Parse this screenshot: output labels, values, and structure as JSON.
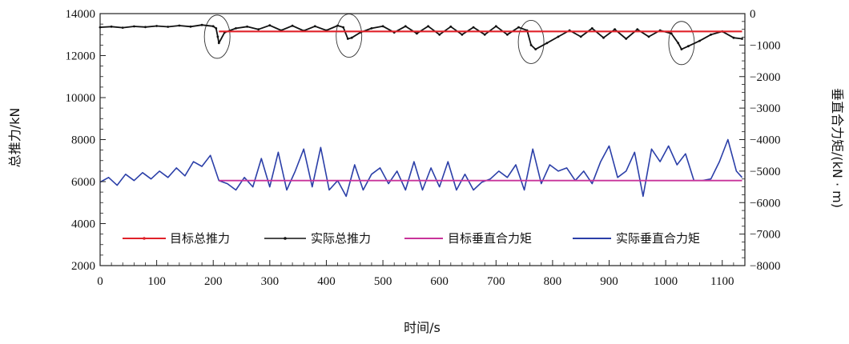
{
  "chart_data": {
    "type": "line",
    "xlabel": "时间/s",
    "ylabel_left": "总推力/kN",
    "ylabel_right": "垂直合力矩/(kN · m)",
    "xlim": [
      0,
      1140
    ],
    "ylim_left": [
      2000,
      14000
    ],
    "ylim_right": [
      -8000,
      0
    ],
    "x_ticks": [
      0,
      100,
      200,
      300,
      400,
      500,
      600,
      700,
      800,
      900,
      1000,
      1100
    ],
    "y_left_ticks": [
      2000,
      4000,
      6000,
      8000,
      10000,
      12000,
      14000
    ],
    "y_right_ticks": [
      0,
      -1000,
      -2000,
      -3000,
      -4000,
      -5000,
      -6000,
      -7000,
      -8000
    ],
    "grid": false,
    "legend_position": "bottom",
    "series": [
      {
        "name": "目标总推力",
        "axis": "left",
        "color": "#e0222a",
        "x": [
          210,
          1135
        ],
        "y": [
          13150,
          13150
        ]
      },
      {
        "name": "实际总推力",
        "axis": "left",
        "color": "#111111",
        "x": [
          0,
          20,
          40,
          60,
          80,
          100,
          120,
          140,
          160,
          180,
          200,
          205,
          208,
          210,
          220,
          240,
          260,
          280,
          300,
          320,
          340,
          360,
          380,
          400,
          420,
          430,
          438,
          445,
          460,
          480,
          500,
          520,
          540,
          560,
          580,
          600,
          620,
          640,
          660,
          680,
          700,
          720,
          740,
          755,
          762,
          770,
          790,
          810,
          830,
          850,
          870,
          890,
          910,
          930,
          950,
          970,
          990,
          1010,
          1022,
          1028,
          1040,
          1060,
          1080,
          1100,
          1120,
          1135
        ],
        "y": [
          13350,
          13380,
          13330,
          13390,
          13360,
          13410,
          13370,
          13430,
          13380,
          13460,
          13400,
          13300,
          12900,
          12600,
          13100,
          13300,
          13380,
          13250,
          13440,
          13200,
          13420,
          13180,
          13400,
          13200,
          13430,
          13350,
          12800,
          12850,
          13100,
          13300,
          13400,
          13100,
          13400,
          13050,
          13400,
          13000,
          13380,
          13000,
          13350,
          13000,
          13400,
          13000,
          13350,
          13200,
          12500,
          12300,
          12600,
          12900,
          13200,
          12900,
          13300,
          12850,
          13250,
          12800,
          13250,
          12900,
          13200,
          13050,
          12600,
          12300,
          12450,
          12700,
          13000,
          13150,
          12850,
          12800
        ]
      },
      {
        "name": "目标垂直合力矩",
        "axis": "right",
        "color": "#c8339a",
        "x": [
          210,
          1135
        ],
        "y": [
          -5300,
          -5300
        ]
      },
      {
        "name": "实际垂直合力矩",
        "axis": "right",
        "color": "#2b3fa8",
        "x": [
          0,
          15,
          30,
          45,
          60,
          75,
          90,
          105,
          120,
          135,
          150,
          165,
          180,
          195,
          210,
          225,
          240,
          255,
          270,
          285,
          300,
          315,
          330,
          345,
          360,
          375,
          390,
          405,
          420,
          435,
          450,
          465,
          480,
          495,
          510,
          525,
          540,
          555,
          570,
          585,
          600,
          615,
          630,
          645,
          660,
          675,
          690,
          705,
          720,
          735,
          750,
          765,
          780,
          795,
          810,
          825,
          840,
          855,
          870,
          885,
          900,
          915,
          930,
          945,
          960,
          975,
          990,
          1005,
          1020,
          1035,
          1050,
          1065,
          1080,
          1095,
          1110,
          1125,
          1135
        ],
        "y": [
          -5350,
          -5200,
          -5450,
          -5100,
          -5300,
          -5050,
          -5250,
          -5000,
          -5200,
          -4900,
          -5150,
          -4700,
          -4850,
          -4500,
          -5300,
          -5400,
          -5600,
          -5200,
          -5500,
          -4600,
          -5500,
          -4400,
          -5600,
          -5000,
          -4300,
          -5500,
          -4250,
          -5600,
          -5300,
          -5800,
          -4800,
          -5600,
          -5100,
          -4900,
          -5400,
          -5000,
          -5600,
          -4700,
          -5600,
          -4900,
          -5500,
          -4700,
          -5600,
          -5100,
          -5600,
          -5350,
          -5250,
          -5000,
          -5200,
          -4800,
          -5600,
          -4300,
          -5400,
          -4800,
          -5000,
          -4900,
          -5300,
          -5000,
          -5400,
          -4700,
          -4200,
          -5200,
          -5000,
          -4400,
          -5800,
          -4300,
          -4700,
          -4200,
          -4800,
          -4450,
          -5300,
          -5300,
          -5250,
          -4700,
          -4000,
          -5000,
          -5200
        ]
      }
    ]
  }
}
